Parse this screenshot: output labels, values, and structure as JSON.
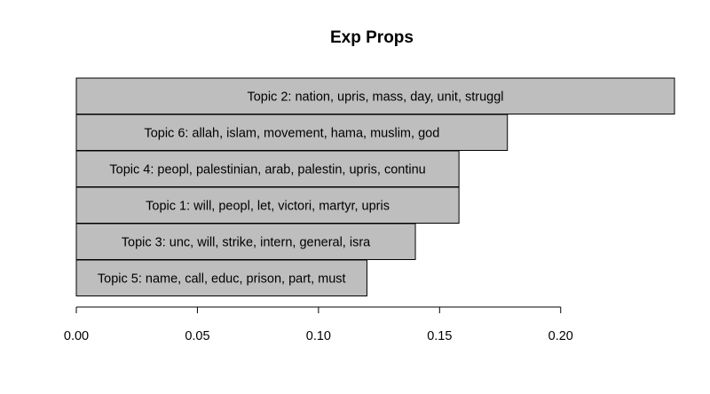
{
  "chart_data": {
    "type": "bar",
    "orientation": "horizontal",
    "title": "Exp Props",
    "xlabel": "",
    "ylabel": "",
    "categories": [
      "Topic 5: name, call, educ, prison, part, must",
      "Topic 3: unc, will, strike, intern, general, isra",
      "Topic 1: will, peopl, let, victori, martyr, upris",
      "Topic 4: peopl, palestinian, arab, palestin, upris, continu",
      "Topic 6: allah, islam, movement, hama, muslim, god",
      "Topic 2: nation, upris, mass, day, unit, struggl"
    ],
    "values": [
      0.12,
      0.14,
      0.158,
      0.158,
      0.178,
      0.247
    ],
    "xlim": [
      0,
      0.247
    ],
    "xticks": [
      0.0,
      0.05,
      0.1,
      0.15,
      0.2
    ],
    "xtick_labels": [
      "0.00",
      "0.05",
      "0.10",
      "0.15",
      "0.20"
    ],
    "grid": false,
    "legend": "none",
    "colors": {
      "bar_fill": "#bebebe",
      "bar_stroke": "#000000",
      "text": "#000000",
      "background": "#ffffff"
    }
  }
}
